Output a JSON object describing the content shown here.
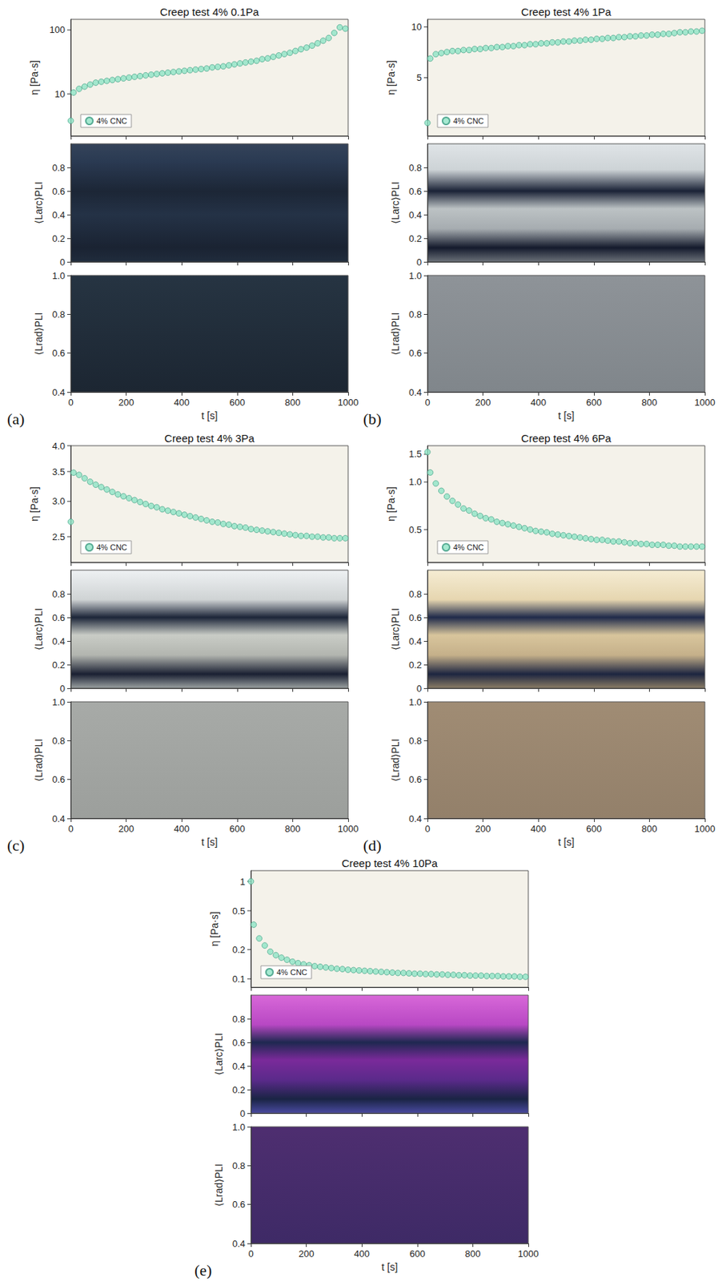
{
  "chart_data": [
    {
      "type": "scatter",
      "title": "Creep test 4% 0.1Pa",
      "panel_label": "(a)",
      "x_label": "t [s]",
      "y_label": "η [Pa·s]",
      "x": [
        0,
        10,
        30,
        50,
        70,
        90,
        110,
        130,
        150,
        170,
        190,
        210,
        230,
        250,
        270,
        290,
        310,
        330,
        350,
        370,
        390,
        410,
        430,
        450,
        470,
        490,
        510,
        530,
        550,
        570,
        590,
        610,
        630,
        650,
        670,
        690,
        710,
        730,
        750,
        770,
        790,
        810,
        830,
        850,
        870,
        890,
        910,
        930,
        950,
        970,
        990
      ],
      "series": [
        {
          "name": "4% CNC",
          "color": "#8ee3c5",
          "marker": "circle",
          "values": [
            3.8,
            10.5,
            12,
            13,
            14,
            15,
            15.5,
            16,
            16.5,
            17,
            17.5,
            18,
            18.5,
            19,
            19.5,
            20,
            20.5,
            21,
            21.5,
            22,
            22.5,
            23,
            23.5,
            24,
            24.5,
            25,
            26,
            26.5,
            27,
            28,
            29,
            30,
            31,
            32,
            33,
            35,
            36,
            38,
            40,
            42,
            44,
            47,
            50,
            53,
            57,
            62,
            68,
            75,
            90,
            110,
            105
          ]
        }
      ],
      "xlim": [
        0,
        1000
      ],
      "xticks": [
        0,
        200,
        400,
        600,
        800,
        1000
      ],
      "ylim": [
        2.2,
        147
      ],
      "yticks": [
        10,
        100
      ],
      "log": "y",
      "grid": false,
      "legend": "lower left",
      "strips": [
        {
          "y_label": "⟨Larc⟩PLI",
          "ylim": [
            0,
            1
          ],
          "yticks": [
            0,
            0.2,
            0.4,
            0.6,
            0.8
          ]
        },
        {
          "y_label": "⟨Lrad⟩PLI",
          "ylim": [
            0.4,
            1.0
          ],
          "yticks": [
            0.4,
            0.6,
            0.8,
            {
              "value": 1.0,
              "label": "1.0"
            }
          ]
        }
      ]
    },
    {
      "type": "scatter",
      "title": "Creep test 4% 1Pa",
      "panel_label": "(b)",
      "x_label": "t [s]",
      "y_label": "η [Pa·s]",
      "x": [
        0,
        10,
        30,
        50,
        70,
        90,
        110,
        130,
        150,
        170,
        190,
        210,
        230,
        250,
        270,
        290,
        310,
        330,
        350,
        370,
        390,
        410,
        430,
        450,
        470,
        490,
        510,
        530,
        550,
        570,
        590,
        610,
        630,
        650,
        670,
        690,
        710,
        730,
        750,
        770,
        790,
        810,
        830,
        850,
        870,
        890,
        910,
        930,
        950,
        970,
        990
      ],
      "series": [
        {
          "name": "4% CNC",
          "color": "#8ee3c5",
          "marker": "circle",
          "values": [
            2.7,
            6.5,
            6.9,
            7.0,
            7.1,
            7.2,
            7.2,
            7.3,
            7.3,
            7.4,
            7.4,
            7.5,
            7.5,
            7.6,
            7.6,
            7.7,
            7.7,
            7.8,
            7.8,
            7.9,
            7.9,
            8.0,
            8.0,
            8.1,
            8.1,
            8.2,
            8.2,
            8.3,
            8.3,
            8.4,
            8.4,
            8.5,
            8.5,
            8.6,
            8.6,
            8.7,
            8.7,
            8.8,
            8.8,
            8.9,
            8.9,
            9.0,
            9.0,
            9.1,
            9.1,
            9.2,
            9.3,
            9.3,
            9.4,
            9.4,
            9.5
          ]
        }
      ],
      "xlim": [
        0,
        1000
      ],
      "xticks": [
        0,
        200,
        400,
        600,
        800,
        1000
      ],
      "ylim": [
        2.26,
        11.1
      ],
      "yticks": [
        5,
        10
      ],
      "log": "y",
      "grid": false,
      "legend": "lower left",
      "strips": [
        {
          "y_label": "⟨Larc⟩PLI",
          "ylim": [
            0,
            1
          ],
          "yticks": [
            0,
            0.2,
            0.4,
            0.6,
            0.8
          ]
        },
        {
          "y_label": "⟨Lrad⟩PLI",
          "ylim": [
            0.4,
            1.0
          ],
          "yticks": [
            0.4,
            0.6,
            0.8,
            {
              "value": 1.0,
              "label": "1.0"
            }
          ]
        }
      ]
    },
    {
      "type": "scatter",
      "title": "Creep test 4% 3Pa",
      "panel_label": "(c)",
      "x_label": "t [s]",
      "y_label": "η [Pa·s]",
      "x": [
        0,
        10,
        30,
        50,
        70,
        90,
        110,
        130,
        150,
        170,
        190,
        210,
        230,
        250,
        270,
        290,
        310,
        330,
        350,
        370,
        390,
        410,
        430,
        450,
        470,
        490,
        510,
        530,
        550,
        570,
        590,
        610,
        630,
        650,
        670,
        690,
        710,
        730,
        750,
        770,
        790,
        810,
        830,
        850,
        870,
        890,
        910,
        930,
        950,
        970,
        990
      ],
      "series": [
        {
          "name": "4% CNC",
          "color": "#8ee3c5",
          "marker": "circle",
          "values": [
            2.7,
            3.48,
            3.44,
            3.38,
            3.32,
            3.27,
            3.23,
            3.19,
            3.15,
            3.11,
            3.08,
            3.05,
            3.02,
            2.99,
            2.96,
            2.93,
            2.91,
            2.88,
            2.86,
            2.84,
            2.82,
            2.8,
            2.78,
            2.76,
            2.74,
            2.72,
            2.7,
            2.69,
            2.67,
            2.66,
            2.64,
            2.63,
            2.62,
            2.6,
            2.59,
            2.58,
            2.57,
            2.56,
            2.55,
            2.54,
            2.53,
            2.52,
            2.51,
            2.51,
            2.5,
            2.5,
            2.49,
            2.49,
            2.48,
            2.48,
            2.48
          ]
        }
      ],
      "xlim": [
        0,
        1000
      ],
      "xticks": [
        0,
        200,
        400,
        600,
        800,
        1000
      ],
      "ylim": [
        2.19,
        4.0
      ],
      "yticks": [
        2.5,
        {
          "value": 3.0,
          "label": "3.0"
        },
        3.5,
        {
          "value": 4.0,
          "label": "4.0"
        }
      ],
      "log": "y",
      "grid": false,
      "legend": "lower left",
      "strips": [
        {
          "y_label": "⟨Larc⟩PLI",
          "ylim": [
            0,
            1
          ],
          "yticks": [
            0,
            0.2,
            0.4,
            0.6,
            0.8
          ]
        },
        {
          "y_label": "⟨Lrad⟩PLI",
          "ylim": [
            0.4,
            1.0
          ],
          "yticks": [
            0.4,
            0.6,
            0.8,
            {
              "value": 1.0,
              "label": "1.0"
            }
          ]
        }
      ]
    },
    {
      "type": "scatter",
      "title": "Creep test 4% 6Pa",
      "panel_label": "(d)",
      "x_label": "t [s]",
      "y_label": "η [Pa·s]",
      "x": [
        0,
        10,
        30,
        50,
        70,
        90,
        110,
        130,
        150,
        170,
        190,
        210,
        230,
        250,
        270,
        290,
        310,
        330,
        350,
        370,
        390,
        410,
        430,
        450,
        470,
        490,
        510,
        530,
        550,
        570,
        590,
        610,
        630,
        650,
        670,
        690,
        710,
        730,
        750,
        770,
        790,
        810,
        830,
        850,
        870,
        890,
        910,
        930,
        950,
        970,
        990
      ],
      "series": [
        {
          "name": "4% CNC",
          "color": "#8ee3c5",
          "marker": "circle",
          "values": [
            1.55,
            1.15,
            0.98,
            0.88,
            0.81,
            0.76,
            0.72,
            0.68,
            0.66,
            0.63,
            0.61,
            0.59,
            0.58,
            0.56,
            0.55,
            0.54,
            0.53,
            0.52,
            0.51,
            0.5,
            0.49,
            0.485,
            0.48,
            0.47,
            0.465,
            0.46,
            0.455,
            0.45,
            0.445,
            0.44,
            0.435,
            0.43,
            0.43,
            0.425,
            0.42,
            0.42,
            0.415,
            0.41,
            0.41,
            0.405,
            0.405,
            0.4,
            0.4,
            0.4,
            0.395,
            0.395,
            0.39,
            0.39,
            0.39,
            0.39,
            0.39
          ]
        }
      ],
      "xlim": [
        0,
        1000
      ],
      "xticks": [
        0,
        200,
        400,
        600,
        800,
        1000
      ],
      "ylim": [
        0.31,
        1.7
      ],
      "yticks": [
        0.5,
        {
          "value": 1.0,
          "label": "1.0"
        },
        1.5
      ],
      "log": "y",
      "grid": false,
      "legend": "lower left",
      "strips": [
        {
          "y_label": "⟨Larc⟩PLI",
          "ylim": [
            0,
            1
          ],
          "yticks": [
            0,
            0.2,
            0.4,
            0.6,
            0.8
          ]
        },
        {
          "y_label": "⟨Lrad⟩PLI",
          "ylim": [
            0.4,
            1.0
          ],
          "yticks": [
            0.4,
            0.6,
            0.8,
            {
              "value": 1.0,
              "label": "1.0"
            }
          ]
        }
      ]
    },
    {
      "type": "scatter",
      "title": "Creep test 4% 10Pa",
      "panel_label": "(e)",
      "x_label": "t [s]",
      "y_label": "η [Pa·s]",
      "x": [
        0,
        10,
        30,
        50,
        70,
        90,
        110,
        130,
        150,
        170,
        190,
        210,
        230,
        250,
        270,
        290,
        310,
        330,
        350,
        370,
        390,
        410,
        430,
        450,
        470,
        490,
        510,
        530,
        550,
        570,
        590,
        610,
        630,
        650,
        670,
        690,
        710,
        730,
        750,
        770,
        790,
        810,
        830,
        850,
        870,
        890,
        910,
        930,
        950,
        970,
        990
      ],
      "series": [
        {
          "name": "4% CNC",
          "color": "#8ee3c5",
          "marker": "circle",
          "values": [
            1.0,
            0.36,
            0.26,
            0.22,
            0.19,
            0.175,
            0.165,
            0.157,
            0.15,
            0.145,
            0.141,
            0.138,
            0.135,
            0.133,
            0.131,
            0.129,
            0.127,
            0.126,
            0.124,
            0.123,
            0.122,
            0.121,
            0.12,
            0.119,
            0.118,
            0.117,
            0.116,
            0.115,
            0.115,
            0.114,
            0.113,
            0.113,
            0.112,
            0.112,
            0.111,
            0.111,
            0.11,
            0.11,
            0.109,
            0.109,
            0.108,
            0.108,
            0.108,
            0.107,
            0.107,
            0.107,
            0.106,
            0.106,
            0.106,
            0.105,
            0.105
          ]
        }
      ],
      "xlim": [
        0,
        1000
      ],
      "xticks": [
        0,
        200,
        400,
        600,
        800,
        1000
      ],
      "ylim": [
        0.082,
        1.29
      ],
      "yticks": [
        0.1,
        0.2,
        0.5,
        1
      ],
      "log": "y",
      "grid": false,
      "legend": "lower left",
      "strips": [
        {
          "y_label": "⟨Larc⟩PLI",
          "ylim": [
            0,
            1
          ],
          "yticks": [
            0,
            0.2,
            0.4,
            0.6,
            0.8
          ]
        },
        {
          "y_label": "⟨Lrad⟩PLI",
          "ylim": [
            0.4,
            1.0
          ],
          "yticks": [
            0.4,
            0.6,
            0.8,
            {
              "value": 1.0,
              "label": "1.0"
            }
          ]
        }
      ]
    }
  ]
}
